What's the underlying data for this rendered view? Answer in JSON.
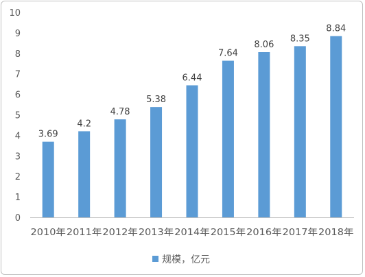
{
  "chart_data": {
    "type": "bar",
    "categories": [
      "2010年",
      "2011年",
      "2012年",
      "2013年",
      "2014年",
      "2015年",
      "2016年",
      "2017年",
      "2018年"
    ],
    "series": [
      {
        "name": "规模，亿元",
        "values": [
          3.69,
          4.2,
          4.78,
          5.38,
          6.44,
          7.64,
          8.06,
          8.35,
          8.84
        ],
        "color": "#5b9bd5"
      }
    ],
    "data_labels": [
      "3.69",
      "4.2",
      "4.78",
      "5.38",
      "6.44",
      "7.64",
      "8.06",
      "8.35",
      "8.84"
    ],
    "yticks": [
      "0",
      "1",
      "2",
      "3",
      "4",
      "5",
      "6",
      "7",
      "8",
      "9",
      "10"
    ],
    "ylim": [
      0,
      10
    ],
    "grid": false,
    "legend_position": "bottom",
    "title": "",
    "xlabel": "",
    "ylabel": ""
  }
}
